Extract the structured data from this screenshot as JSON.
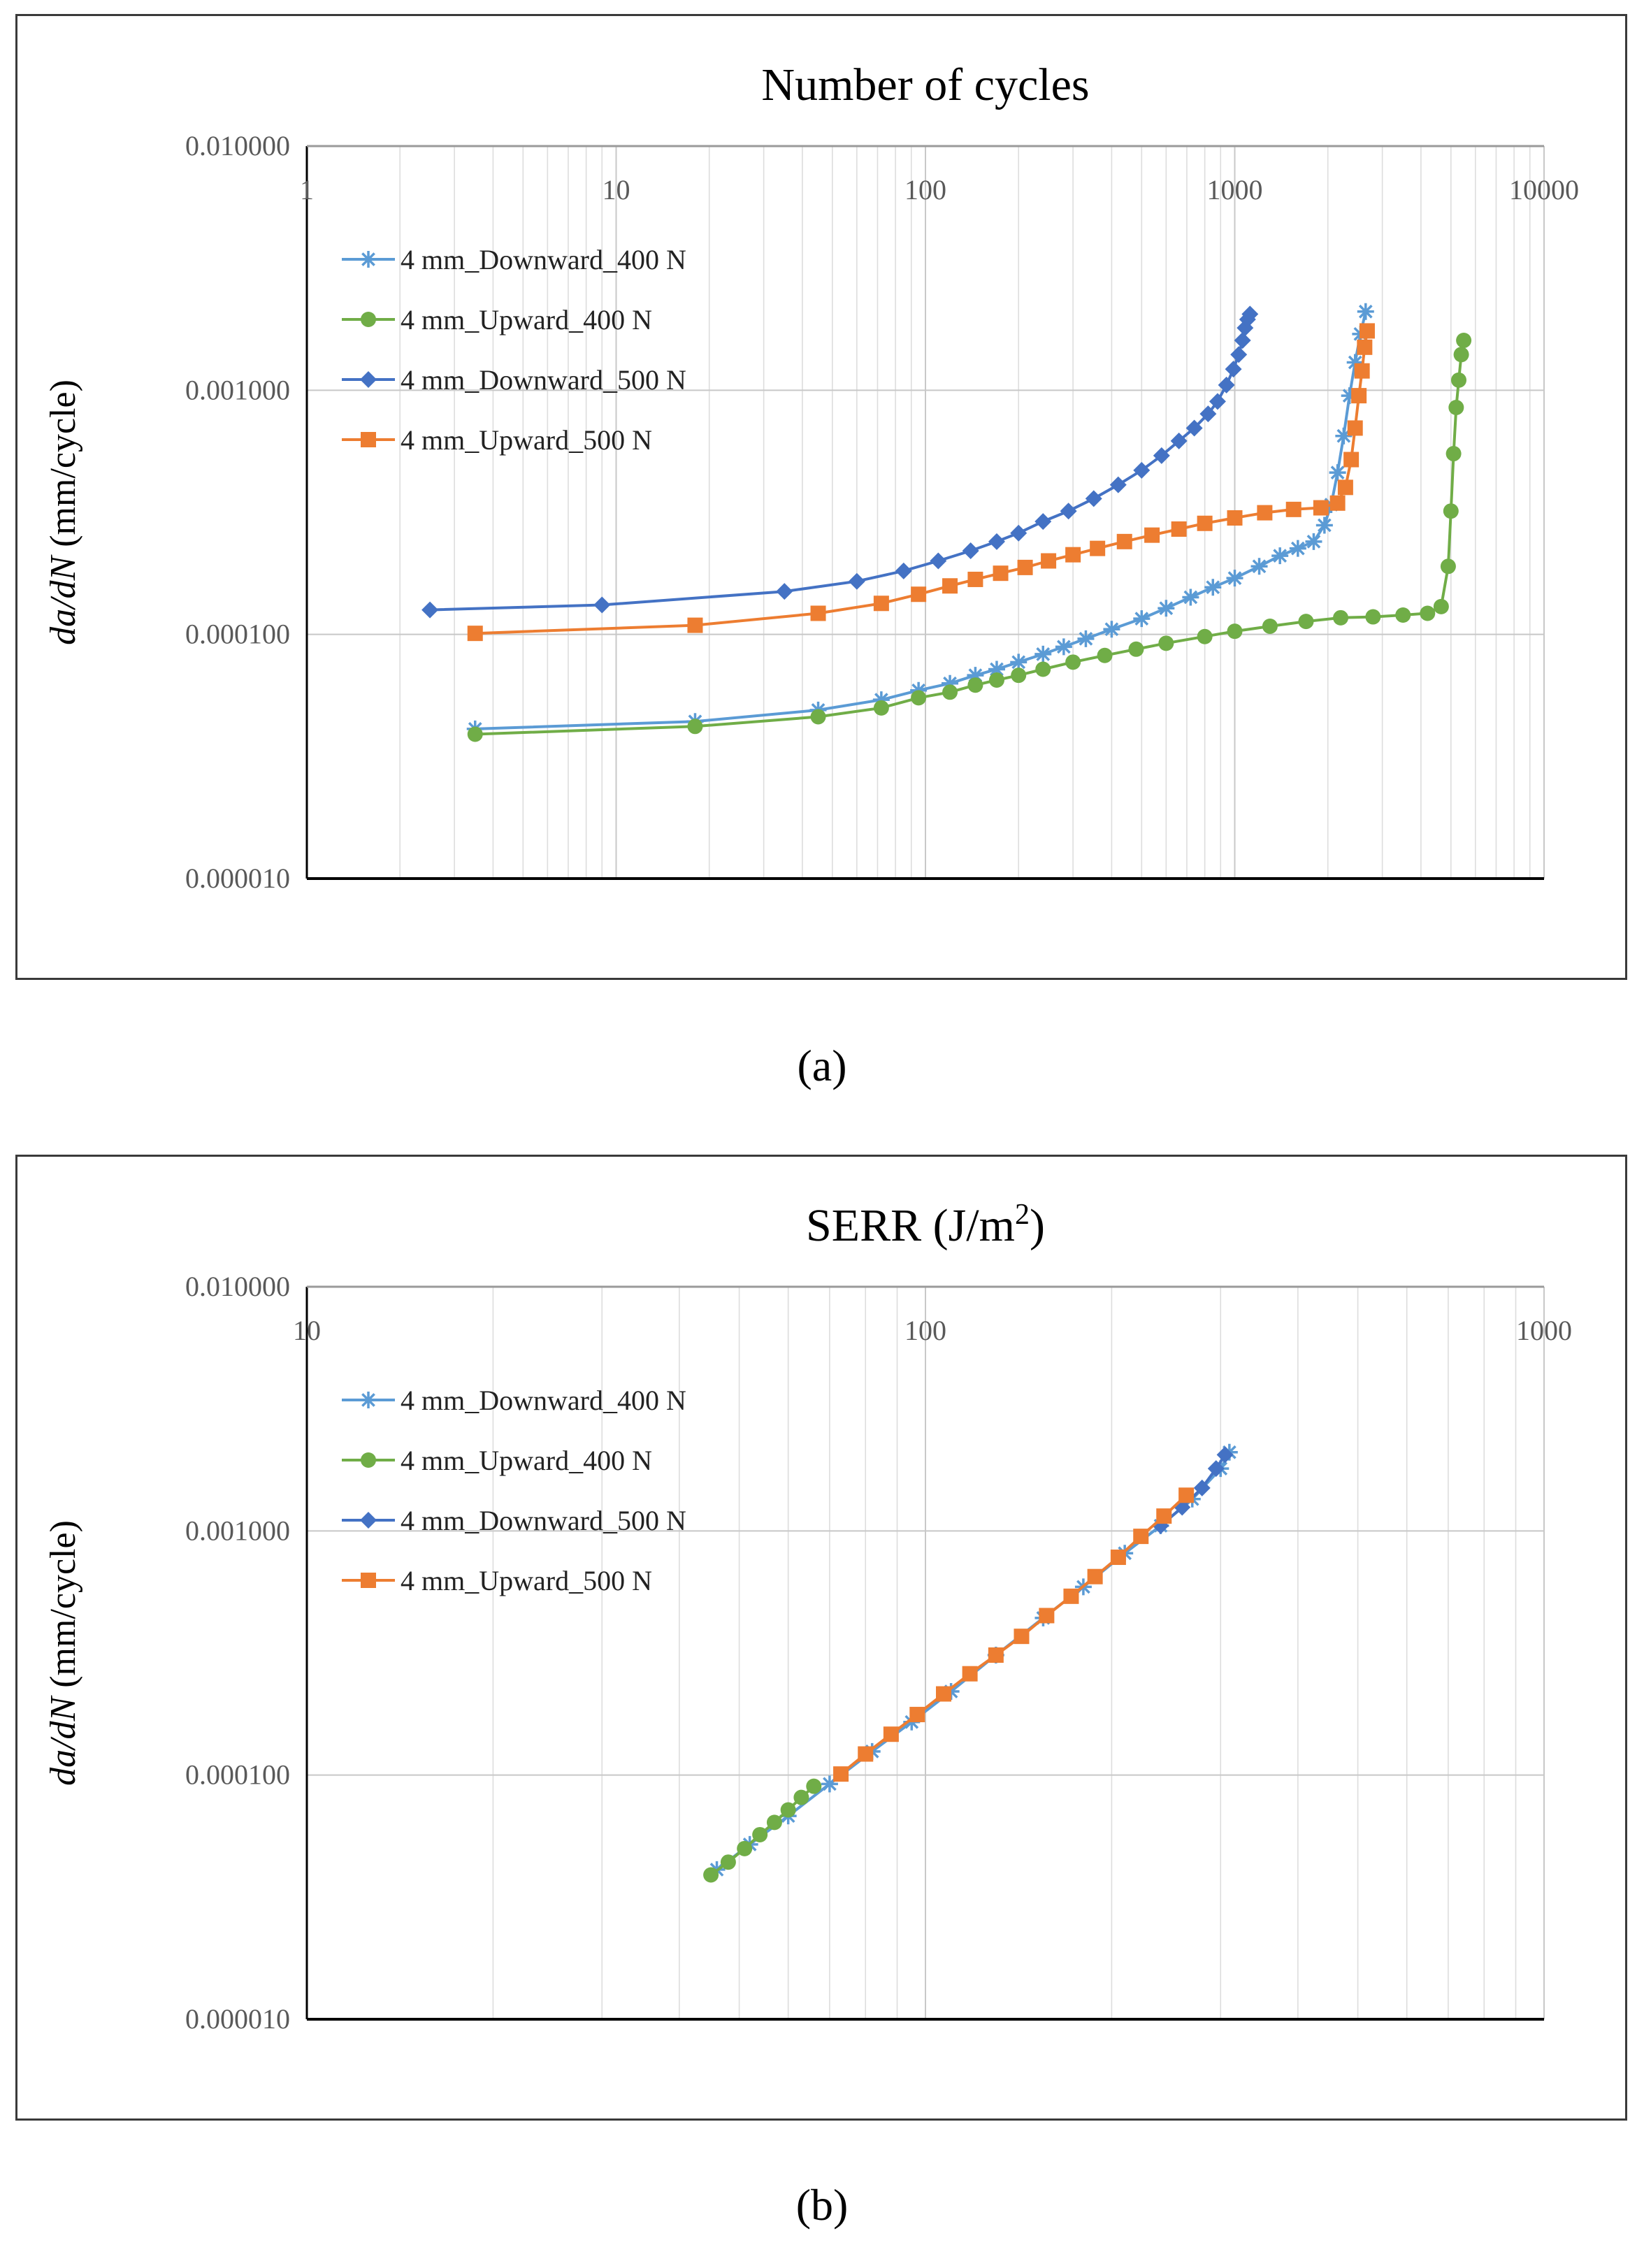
{
  "chart_data": [
    {
      "id": "a",
      "type": "scatter",
      "caption": "(a)",
      "title": "Number of cycles",
      "title_sup": "",
      "title_tail": "",
      "xlabel": "Number of cycles",
      "ylabel_italic": "da/dN",
      "ylabel_rest": " (mm/cycle)",
      "xscale": "log",
      "yscale": "log",
      "xlim": [
        1,
        10000
      ],
      "ylim": [
        1e-05,
        0.01
      ],
      "xticks": [
        1,
        10,
        100,
        1000,
        10000
      ],
      "xtick_labels": [
        "1",
        "10",
        "100",
        "1000",
        "10000"
      ],
      "yticks": [
        0.01,
        0.001,
        0.0001,
        1e-05
      ],
      "ytick_labels": [
        "0.010000",
        "0.001000",
        "0.000100",
        "0.000010"
      ],
      "grid": true,
      "legend_position": "top-left",
      "series": [
        {
          "name": "4 mm_Downward_400 N",
          "color": "#5B9BD5",
          "marker": "asterisk",
          "x": [
            3.5,
            18,
            45,
            72,
            95,
            120,
            145,
            170,
            200,
            240,
            280,
            330,
            400,
            500,
            600,
            720,
            850,
            1000,
            1200,
            1400,
            1600,
            1800,
            1950,
            2050,
            2150,
            2250,
            2350,
            2450,
            2550,
            2650
          ],
          "y": [
            4.1e-05,
            4.4e-05,
            4.9e-05,
            5.4e-05,
            5.9e-05,
            6.3e-05,
            6.8e-05,
            7.2e-05,
            7.7e-05,
            8.3e-05,
            8.9e-05,
            9.6e-05,
            0.000105,
            0.000116,
            0.000128,
            0.000142,
            0.000156,
            0.00017,
            0.00019,
            0.00021,
            0.000225,
            0.00024,
            0.00028,
            0.00034,
            0.00046,
            0.00065,
            0.00095,
            0.0013,
            0.0017,
            0.0021
          ]
        },
        {
          "name": "4 mm_Upward_400 N",
          "color": "#70AD47",
          "marker": "circle",
          "x": [
            3.5,
            18,
            45,
            72,
            95,
            120,
            145,
            170,
            200,
            240,
            300,
            380,
            480,
            600,
            800,
            1000,
            1300,
            1700,
            2200,
            2800,
            3500,
            4200,
            4650,
            4900,
            5000,
            5100,
            5200,
            5300,
            5400,
            5500
          ],
          "y": [
            3.9e-05,
            4.2e-05,
            4.6e-05,
            5e-05,
            5.5e-05,
            5.8e-05,
            6.2e-05,
            6.5e-05,
            6.8e-05,
            7.2e-05,
            7.7e-05,
            8.2e-05,
            8.7e-05,
            9.2e-05,
            9.8e-05,
            0.000103,
            0.000108,
            0.000113,
            0.000117,
            0.000118,
            0.00012,
            0.000122,
            0.00013,
            0.00019,
            0.00032,
            0.00055,
            0.00085,
            0.0011,
            0.0014,
            0.0016
          ]
        },
        {
          "name": "4 mm_Downward_500 N",
          "color": "#4472C4",
          "marker": "diamond",
          "x": [
            2.5,
            9,
            35,
            60,
            85,
            110,
            140,
            170,
            200,
            240,
            290,
            350,
            420,
            500,
            580,
            660,
            740,
            820,
            880,
            940,
            990,
            1030,
            1060,
            1080,
            1100,
            1120
          ],
          "y": [
            0.000126,
            0.000132,
            0.00015,
            0.000165,
            0.000182,
            0.0002,
            0.00022,
            0.00024,
            0.00026,
            0.00029,
            0.00032,
            0.00036,
            0.00041,
            0.00047,
            0.00054,
            0.00062,
            0.0007,
            0.0008,
            0.0009,
            0.00105,
            0.00122,
            0.0014,
            0.0016,
            0.0018,
            0.00195,
            0.00205
          ]
        },
        {
          "name": "4 mm_Upward_500 N",
          "color": "#ED7D31",
          "marker": "square",
          "x": [
            3.5,
            18,
            45,
            72,
            95,
            120,
            145,
            175,
            210,
            250,
            300,
            360,
            440,
            540,
            660,
            800,
            1000,
            1250,
            1550,
            1900,
            2150,
            2280,
            2380,
            2450,
            2520,
            2580,
            2630,
            2680
          ],
          "y": [
            0.000101,
            0.000109,
            0.000122,
            0.000134,
            0.000146,
            0.000158,
            0.000168,
            0.000178,
            0.000188,
            0.0002,
            0.000212,
            0.000225,
            0.00024,
            0.000255,
            0.00027,
            0.000285,
            0.0003,
            0.000315,
            0.000325,
            0.00033,
            0.000345,
            0.0004,
            0.00052,
            0.0007,
            0.00095,
            0.0012,
            0.0015,
            0.00175
          ]
        }
      ]
    },
    {
      "id": "b",
      "type": "scatter",
      "caption": "(b)",
      "title": "SERR (J/m",
      "title_sup": "2",
      "title_tail": ")",
      "xlabel": "SERR (J/m2)",
      "ylabel_italic": "da/dN",
      "ylabel_rest": " (mm/cycle)",
      "xscale": "log",
      "yscale": "log",
      "xlim": [
        10,
        1000
      ],
      "ylim": [
        1e-05,
        0.01
      ],
      "xticks": [
        10,
        100,
        1000
      ],
      "xtick_labels": [
        "10",
        "100",
        "1000"
      ],
      "yticks": [
        0.01,
        0.001,
        0.0001,
        1e-05
      ],
      "ytick_labels": [
        "0.010000",
        "0.001000",
        "0.000100",
        "0.000010"
      ],
      "grid": true,
      "legend_position": "top-left",
      "series": [
        {
          "name": "4 mm_Downward_400 N",
          "color": "#5B9BD5",
          "marker": "asterisk",
          "x": [
            46,
            52,
            60,
            70,
            82,
            95,
            110,
            130,
            155,
            180,
            210,
            240,
            270,
            300,
            310
          ],
          "y": [
            4.1e-05,
            5.2e-05,
            6.8e-05,
            9.2e-05,
            0.000125,
            0.000165,
            0.00022,
            0.00031,
            0.00044,
            0.00059,
            0.00081,
            0.00105,
            0.00135,
            0.0018,
            0.0021
          ]
        },
        {
          "name": "4 mm_Upward_400 N",
          "color": "#70AD47",
          "marker": "circle",
          "x": [
            45,
            48,
            51,
            54,
            57,
            60,
            63,
            66
          ],
          "y": [
            3.9e-05,
            4.4e-05,
            5e-05,
            5.7e-05,
            6.4e-05,
            7.2e-05,
            8.1e-05,
            9e-05
          ]
        },
        {
          "name": "4 mm_Downward_500 N",
          "color": "#4472C4",
          "marker": "diamond",
          "x": [
            240,
            260,
            280,
            295,
            305
          ],
          "y": [
            0.00105,
            0.00125,
            0.0015,
            0.0018,
            0.00205
          ]
        },
        {
          "name": "4 mm_Upward_500 N",
          "color": "#ED7D31",
          "marker": "square",
          "x": [
            73,
            80,
            88,
            97,
            107,
            118,
            130,
            143,
            157,
            172,
            188,
            205,
            223,
            243,
            264
          ],
          "y": [
            0.000101,
            0.000122,
            0.000147,
            0.000177,
            0.000215,
            0.00026,
            0.00031,
            0.00037,
            0.00045,
            0.00054,
            0.00065,
            0.00078,
            0.00095,
            0.00115,
            0.0014
          ]
        }
      ]
    }
  ]
}
